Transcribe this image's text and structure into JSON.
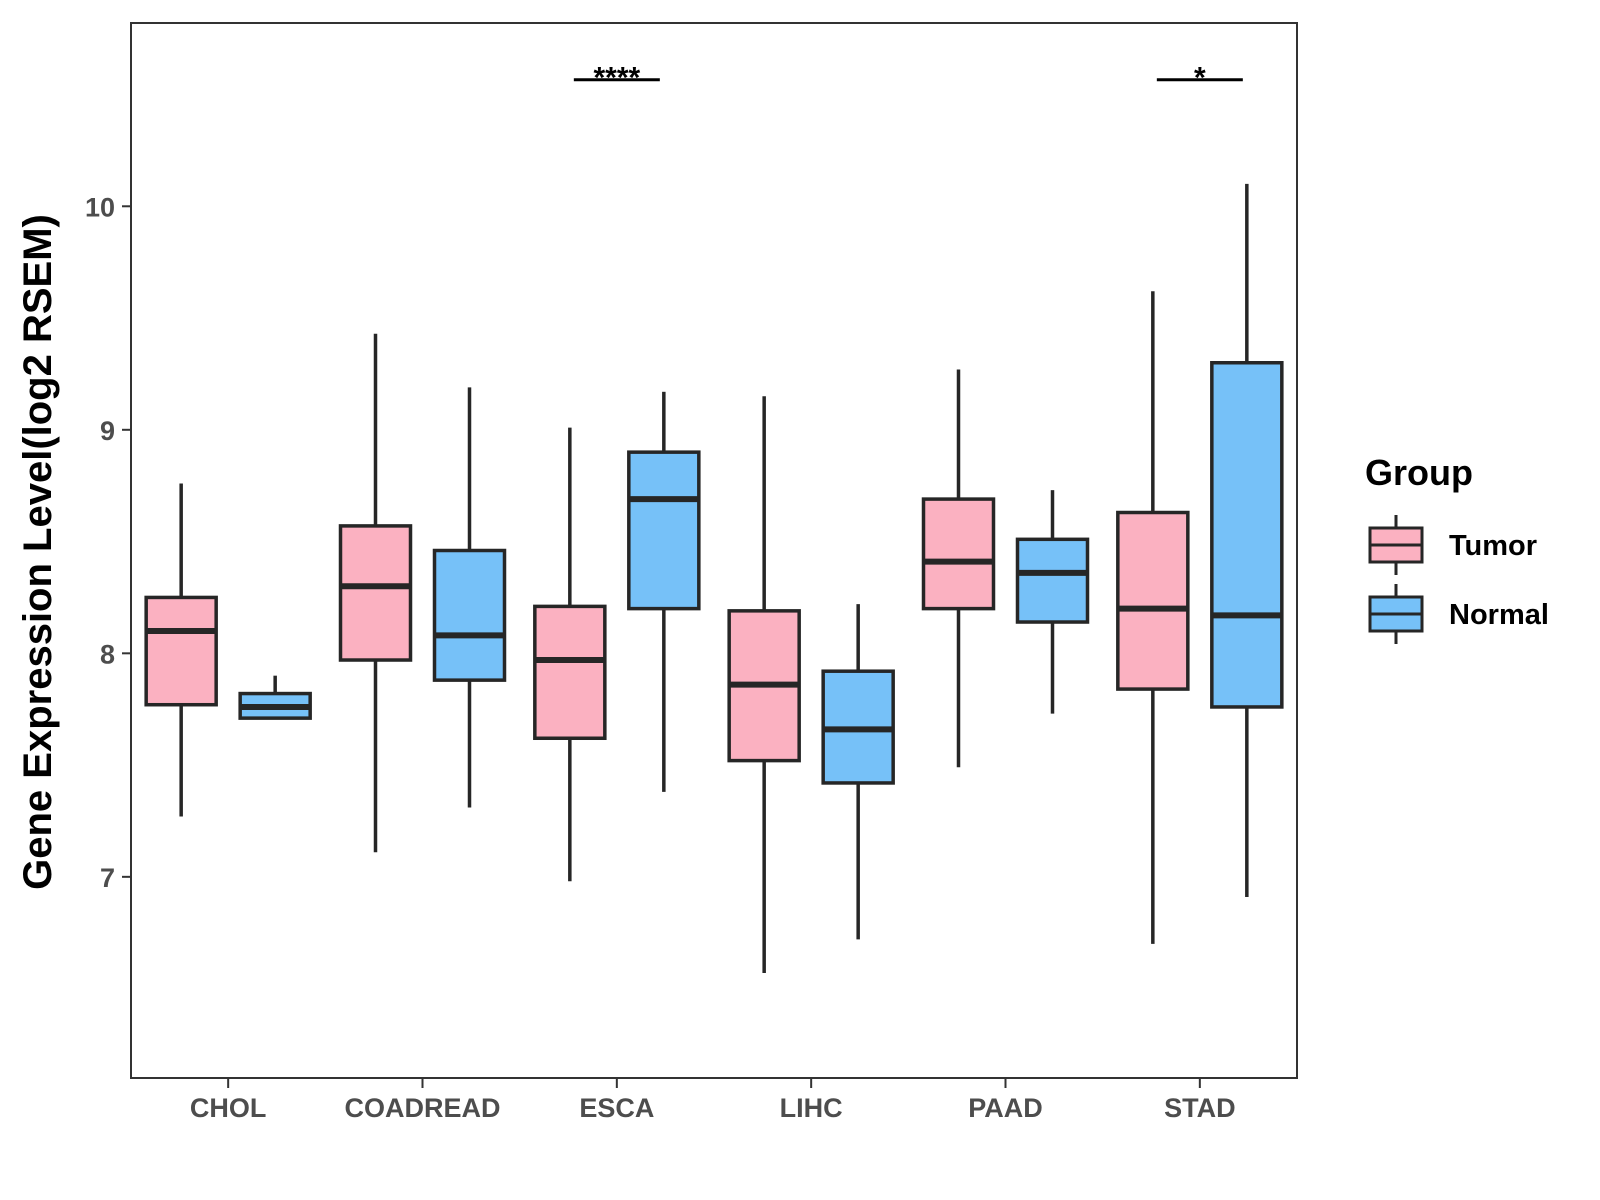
{
  "chart_data": {
    "type": "boxplot",
    "ylabel": "Gene Expression Level(log2 RSEM)",
    "xlabel": "",
    "ylim": [
      6.1,
      10.82
    ],
    "yticks": [
      7,
      8,
      9,
      10
    ],
    "categories": [
      "CHOL",
      "COADREAD",
      "ESCA",
      "LIHC",
      "PAAD",
      "STAD"
    ],
    "legend": {
      "title": "Group",
      "position": "right",
      "entries": [
        {
          "name": "Tumor",
          "color": "#fbb1c1"
        },
        {
          "name": "Normal",
          "color": "#76c1f8"
        }
      ]
    },
    "series": [
      {
        "name": "Tumor",
        "color": "#fbb1c1",
        "boxes": [
          {
            "category": "CHOL",
            "low": 7.27,
            "q1": 7.77,
            "median": 8.1,
            "q3": 8.25,
            "high": 8.76
          },
          {
            "category": "COADREAD",
            "low": 7.11,
            "q1": 7.97,
            "median": 8.3,
            "q3": 8.57,
            "high": 9.43
          },
          {
            "category": "ESCA",
            "low": 6.98,
            "q1": 7.62,
            "median": 7.97,
            "q3": 8.21,
            "high": 9.01
          },
          {
            "category": "LIHC",
            "low": 6.57,
            "q1": 7.52,
            "median": 7.86,
            "q3": 8.19,
            "high": 9.15
          },
          {
            "category": "PAAD",
            "low": 7.49,
            "q1": 8.2,
            "median": 8.41,
            "q3": 8.69,
            "high": 9.27
          },
          {
            "category": "STAD",
            "low": 6.7,
            "q1": 7.84,
            "median": 8.2,
            "q3": 8.63,
            "high": 9.62
          }
        ]
      },
      {
        "name": "Normal",
        "color": "#76c1f8",
        "boxes": [
          {
            "category": "CHOL",
            "low": 7.71,
            "q1": 7.71,
            "median": 7.76,
            "q3": 7.82,
            "high": 7.9
          },
          {
            "category": "COADREAD",
            "low": 7.31,
            "q1": 7.88,
            "median": 8.08,
            "q3": 8.46,
            "high": 9.19
          },
          {
            "category": "ESCA",
            "low": 7.38,
            "q1": 8.2,
            "median": 8.69,
            "q3": 8.9,
            "high": 9.17
          },
          {
            "category": "LIHC",
            "low": 6.72,
            "q1": 7.42,
            "median": 7.66,
            "q3": 7.92,
            "high": 8.22
          },
          {
            "category": "PAAD",
            "low": 7.73,
            "q1": 8.14,
            "median": 8.36,
            "q3": 8.51,
            "high": 8.73
          },
          {
            "category": "STAD",
            "low": 6.91,
            "q1": 7.76,
            "median": 8.17,
            "q3": 9.3,
            "high": 10.1
          }
        ]
      }
    ],
    "annotations": [
      {
        "category": "ESCA",
        "label": "****",
        "y": 10.62
      },
      {
        "category": "STAD",
        "label": "*",
        "y": 10.62
      }
    ]
  }
}
